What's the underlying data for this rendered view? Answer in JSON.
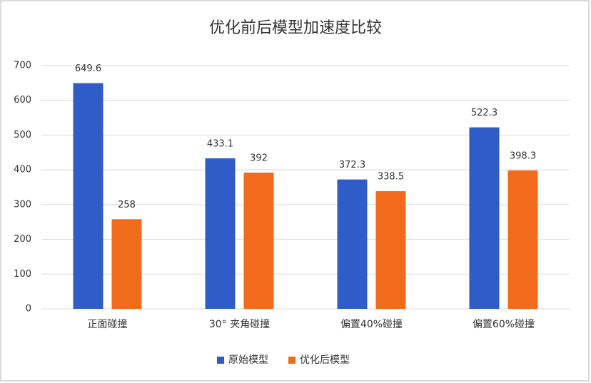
{
  "chart_data": {
    "type": "bar",
    "title": "优化前后模型加速度比较",
    "categories": [
      "正面碰撞",
      "30° 夹角碰撞",
      "偏置40%碰撞",
      "偏置60%碰撞"
    ],
    "series": [
      {
        "name": "原始模型",
        "color": "#2f5cc6",
        "values": [
          649.6,
          433.1,
          372.3,
          522.3
        ]
      },
      {
        "name": "优化后模型",
        "color": "#f26a1b",
        "values": [
          258,
          392,
          338.5,
          398.3
        ]
      }
    ],
    "ylim": [
      0,
      700
    ],
    "yticks": [
      0,
      100,
      200,
      300,
      400,
      500,
      600,
      700
    ],
    "grid": true,
    "legend": "bottom"
  }
}
